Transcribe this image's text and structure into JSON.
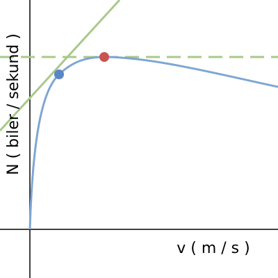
{
  "axes": {
    "x_label": "v ( m / s )",
    "y_label": "N ( biler / sekund )"
  }
}
